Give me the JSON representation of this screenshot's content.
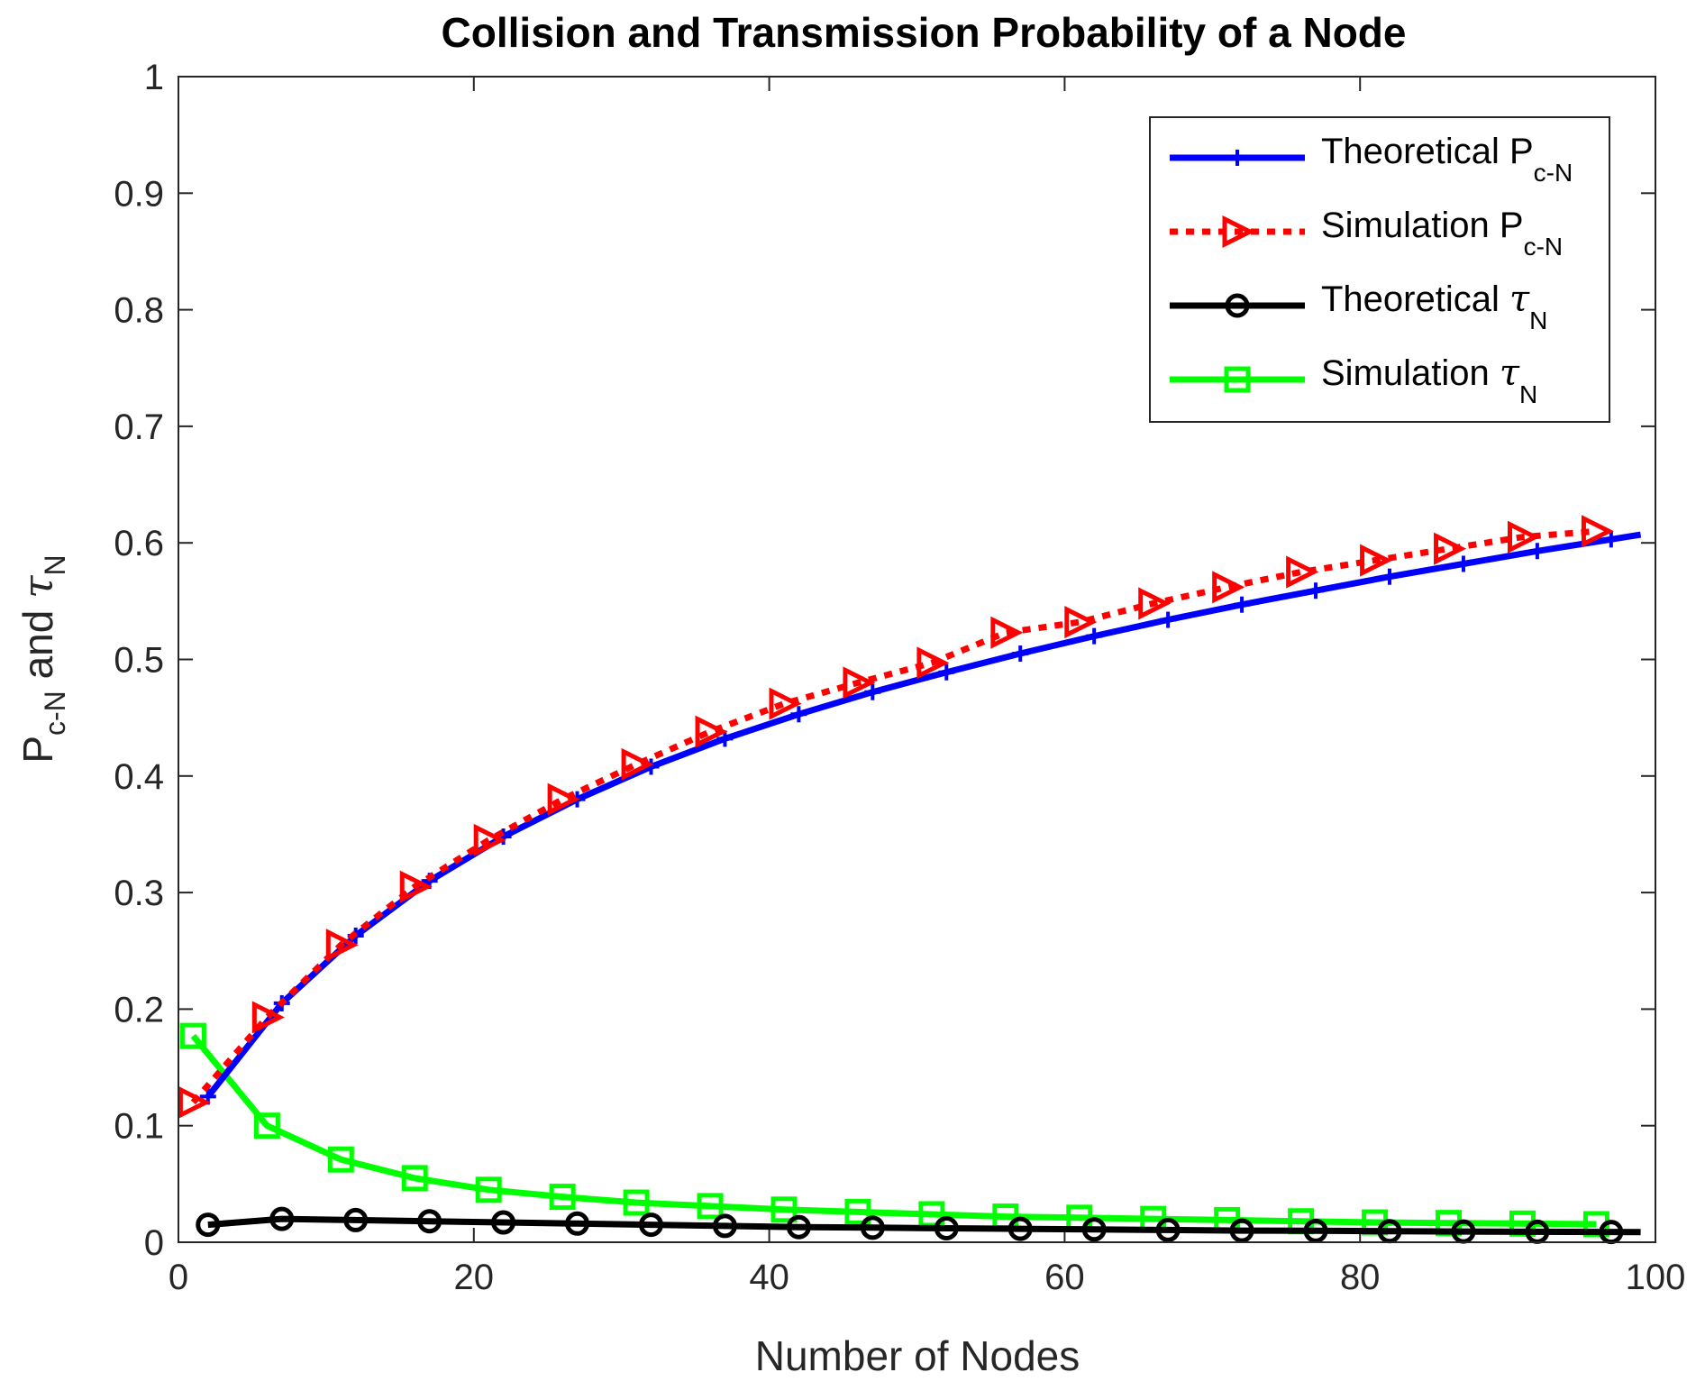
{
  "chart_data": {
    "type": "line",
    "title": "Collision and Transmission Probability of a Node",
    "xlabel": "Number of Nodes",
    "ylabel": {
      "main": "P",
      "sub": "c-N",
      "mid": " and ",
      "sym": "τ",
      "sub2": "N"
    },
    "xlim": [
      0,
      100
    ],
    "ylim": [
      0,
      1
    ],
    "xticks": [
      "0",
      "20",
      "40",
      "60",
      "80",
      "100"
    ],
    "yticks": [
      "0",
      "0.1",
      "0.2",
      "0.3",
      "0.4",
      "0.5",
      "0.6",
      "0.7",
      "0.8",
      "0.9",
      "1"
    ],
    "legend_position": "top-right",
    "series": [
      {
        "name": "Theoretical P_c-N",
        "label_main": "Theoretical P",
        "label_sub": "c-N",
        "color": "#0000ff",
        "line": "solid",
        "marker": "plus",
        "x": [
          2,
          7,
          12,
          17,
          22,
          27,
          32,
          37,
          42,
          47,
          52,
          57,
          62,
          67,
          72,
          77,
          82,
          87,
          92,
          97
        ],
        "values": [
          0.125,
          0.205,
          0.263,
          0.31,
          0.348,
          0.38,
          0.408,
          0.432,
          0.453,
          0.472,
          0.489,
          0.505,
          0.52,
          0.534,
          0.547,
          0.559,
          0.571,
          0.582,
          0.593,
          0.603
        ]
      },
      {
        "name": "Simulation P_c-N",
        "label_main": "Simulation P",
        "label_sub": "c-N",
        "color": "#ff0000",
        "line": "dotted",
        "marker": "triangle-right",
        "x": [
          1,
          6,
          11,
          16,
          21,
          26,
          31,
          36,
          41,
          46,
          51,
          56,
          61,
          66,
          71,
          76,
          81,
          86,
          91,
          96
        ],
        "values": [
          0.12,
          0.193,
          0.255,
          0.305,
          0.345,
          0.38,
          0.41,
          0.438,
          0.462,
          0.48,
          0.497,
          0.523,
          0.532,
          0.548,
          0.562,
          0.575,
          0.585,
          0.595,
          0.605,
          0.61
        ]
      },
      {
        "name": "Theoretical tau_N",
        "label_main": "Theoretical ",
        "label_sym": "τ",
        "label_sub": "N",
        "color": "#000000",
        "line": "solid",
        "marker": "circle",
        "x": [
          2,
          7,
          12,
          17,
          22,
          27,
          32,
          37,
          42,
          47,
          52,
          57,
          62,
          67,
          72,
          77,
          82,
          87,
          92,
          97
        ],
        "values": [
          0.015,
          0.02,
          0.019,
          0.018,
          0.017,
          0.016,
          0.015,
          0.014,
          0.013,
          0.0125,
          0.012,
          0.0115,
          0.011,
          0.0105,
          0.01,
          0.0098,
          0.0095,
          0.0092,
          0.009,
          0.0088
        ]
      },
      {
        "name": "Simulation tau_N",
        "label_main": "Simulation ",
        "label_sym": "τ",
        "label_sub": "N",
        "color": "#00ff00",
        "line": "solid",
        "marker": "square",
        "x": [
          1,
          6,
          11,
          16,
          21,
          26,
          31,
          36,
          41,
          46,
          51,
          56,
          61,
          66,
          71,
          76,
          81,
          86,
          91,
          96
        ],
        "values": [
          0.177,
          0.1,
          0.071,
          0.055,
          0.045,
          0.039,
          0.034,
          0.031,
          0.028,
          0.026,
          0.024,
          0.022,
          0.021,
          0.02,
          0.019,
          0.018,
          0.017,
          0.0165,
          0.016,
          0.0155
        ]
      }
    ]
  }
}
